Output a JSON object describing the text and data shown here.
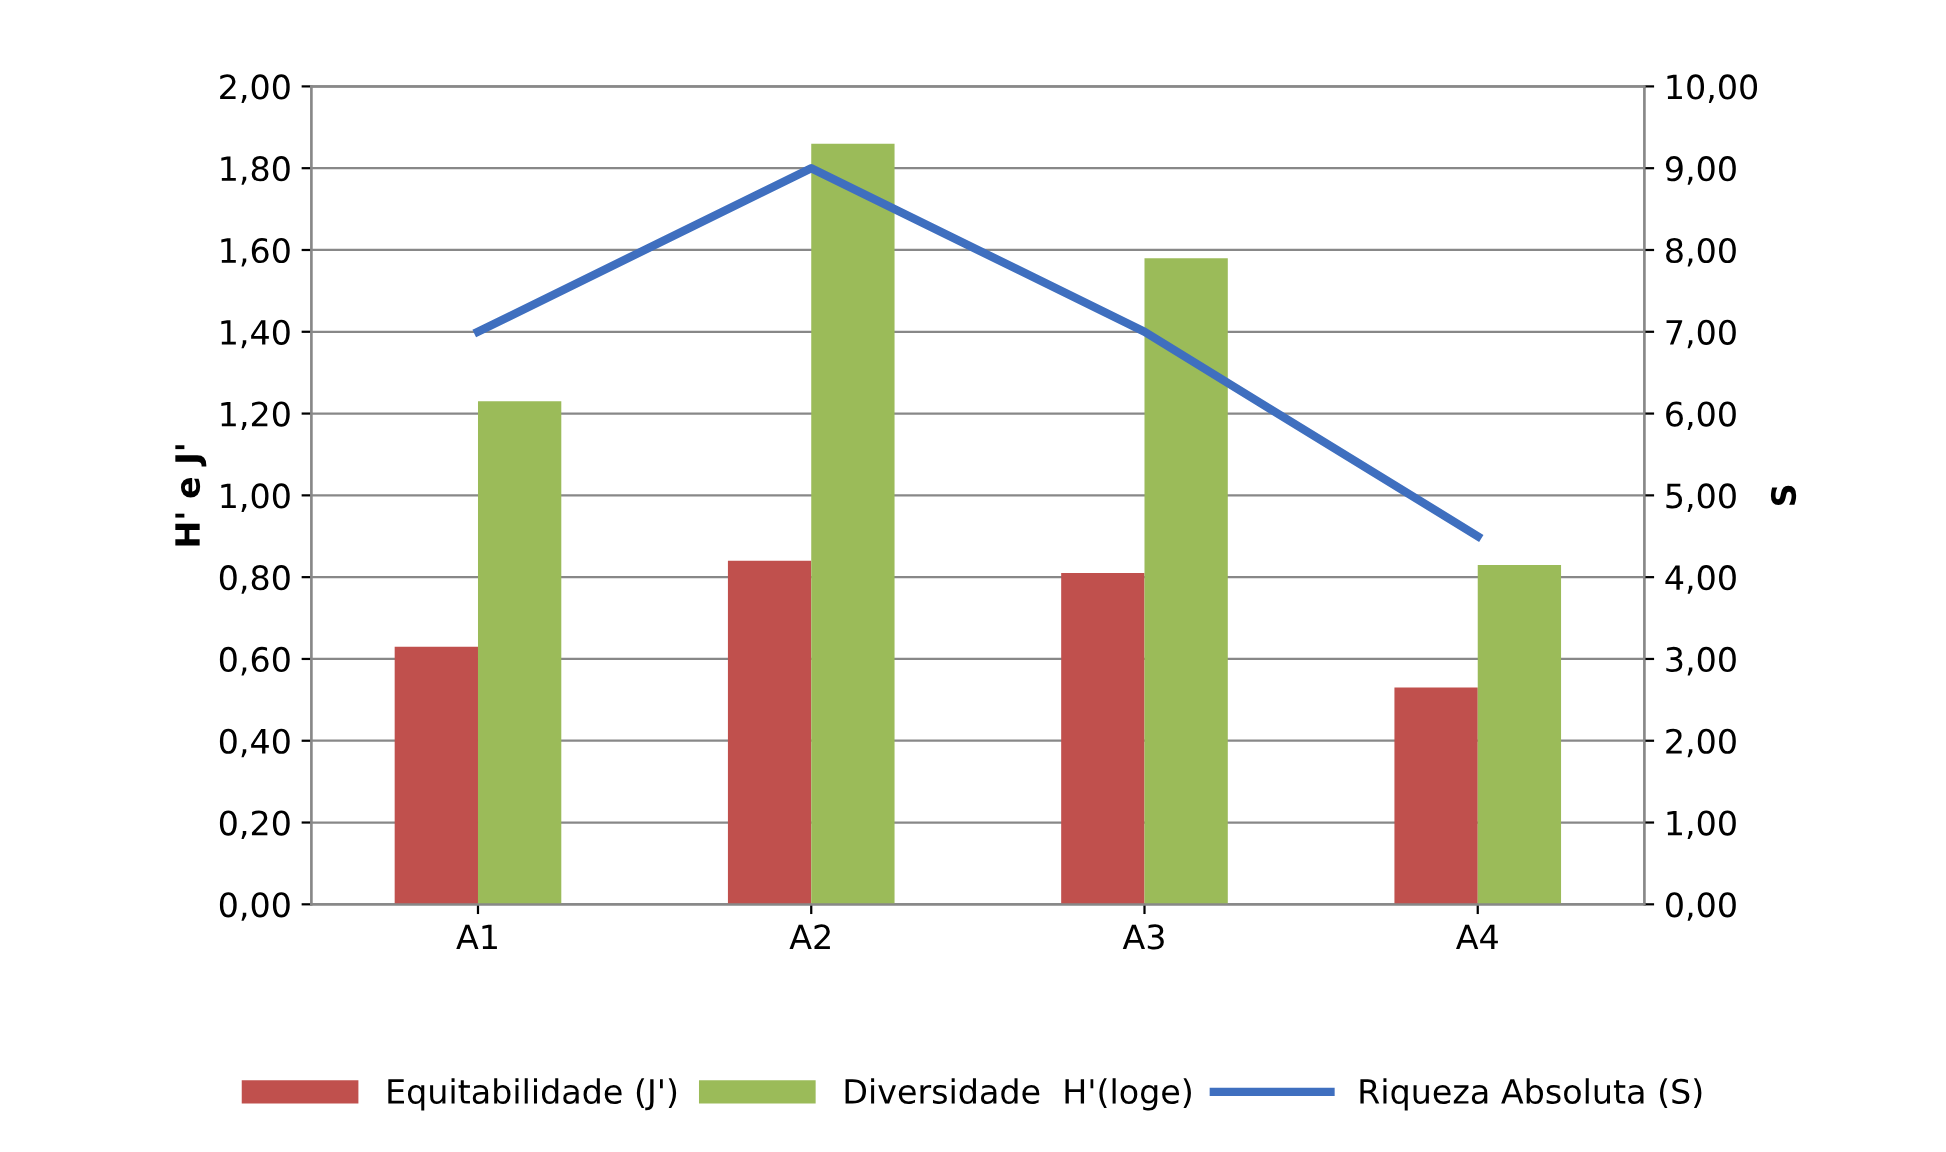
{
  "chart_data": {
    "type": "bar",
    "ylabel": "H' e J'",
    "y2label": "S",
    "categories": [
      "A1",
      "A2",
      "A3",
      "A4"
    ],
    "series": [
      {
        "name": "Equitabilidade (J')",
        "color": "#c0504d",
        "values": [
          0.63,
          0.84,
          0.81,
          0.53
        ]
      },
      {
        "name": "Diversidade  H'(loge)",
        "color": "#9bbb59",
        "values": [
          1.23,
          1.86,
          1.58,
          0.83
        ]
      },
      {
        "name": "Riqueza Absoluta (S)",
        "type": "line",
        "axis": "y2",
        "color": "#3f6fbf",
        "values": [
          7,
          9,
          7,
          4.5
        ]
      }
    ],
    "ylim": [
      0,
      2
    ],
    "yticks": [
      {
        "value": 0,
        "label": "0,00"
      },
      {
        "value": 0.2,
        "label": "0,20"
      },
      {
        "value": 0.4,
        "label": "0,40"
      },
      {
        "value": 0.6,
        "label": "0,60"
      },
      {
        "value": 0.8,
        "label": "0,80"
      },
      {
        "value": 1,
        "label": "1,00"
      },
      {
        "value": 1.2,
        "label": "1,20"
      },
      {
        "value": 1.4,
        "label": "1,40"
      },
      {
        "value": 1.6,
        "label": "1,60"
      },
      {
        "value": 1.8,
        "label": "1,80"
      },
      {
        "value": 2,
        "label": "2,00"
      }
    ],
    "y2lim": [
      0,
      10
    ],
    "y2ticks": [
      {
        "value": 0,
        "label": "0,00"
      },
      {
        "value": 1,
        "label": "1,00"
      },
      {
        "value": 2,
        "label": "2,00"
      },
      {
        "value": 3,
        "label": "3,00"
      },
      {
        "value": 4,
        "label": "4,00"
      },
      {
        "value": 5,
        "label": "5,00"
      },
      {
        "value": 6,
        "label": "6,00"
      },
      {
        "value": 7,
        "label": "7,00"
      },
      {
        "value": 8,
        "label": "8,00"
      },
      {
        "value": 9,
        "label": "9,00"
      },
      {
        "value": 10,
        "label": "10,00"
      }
    ],
    "grid": "y",
    "legend": "bottom"
  }
}
